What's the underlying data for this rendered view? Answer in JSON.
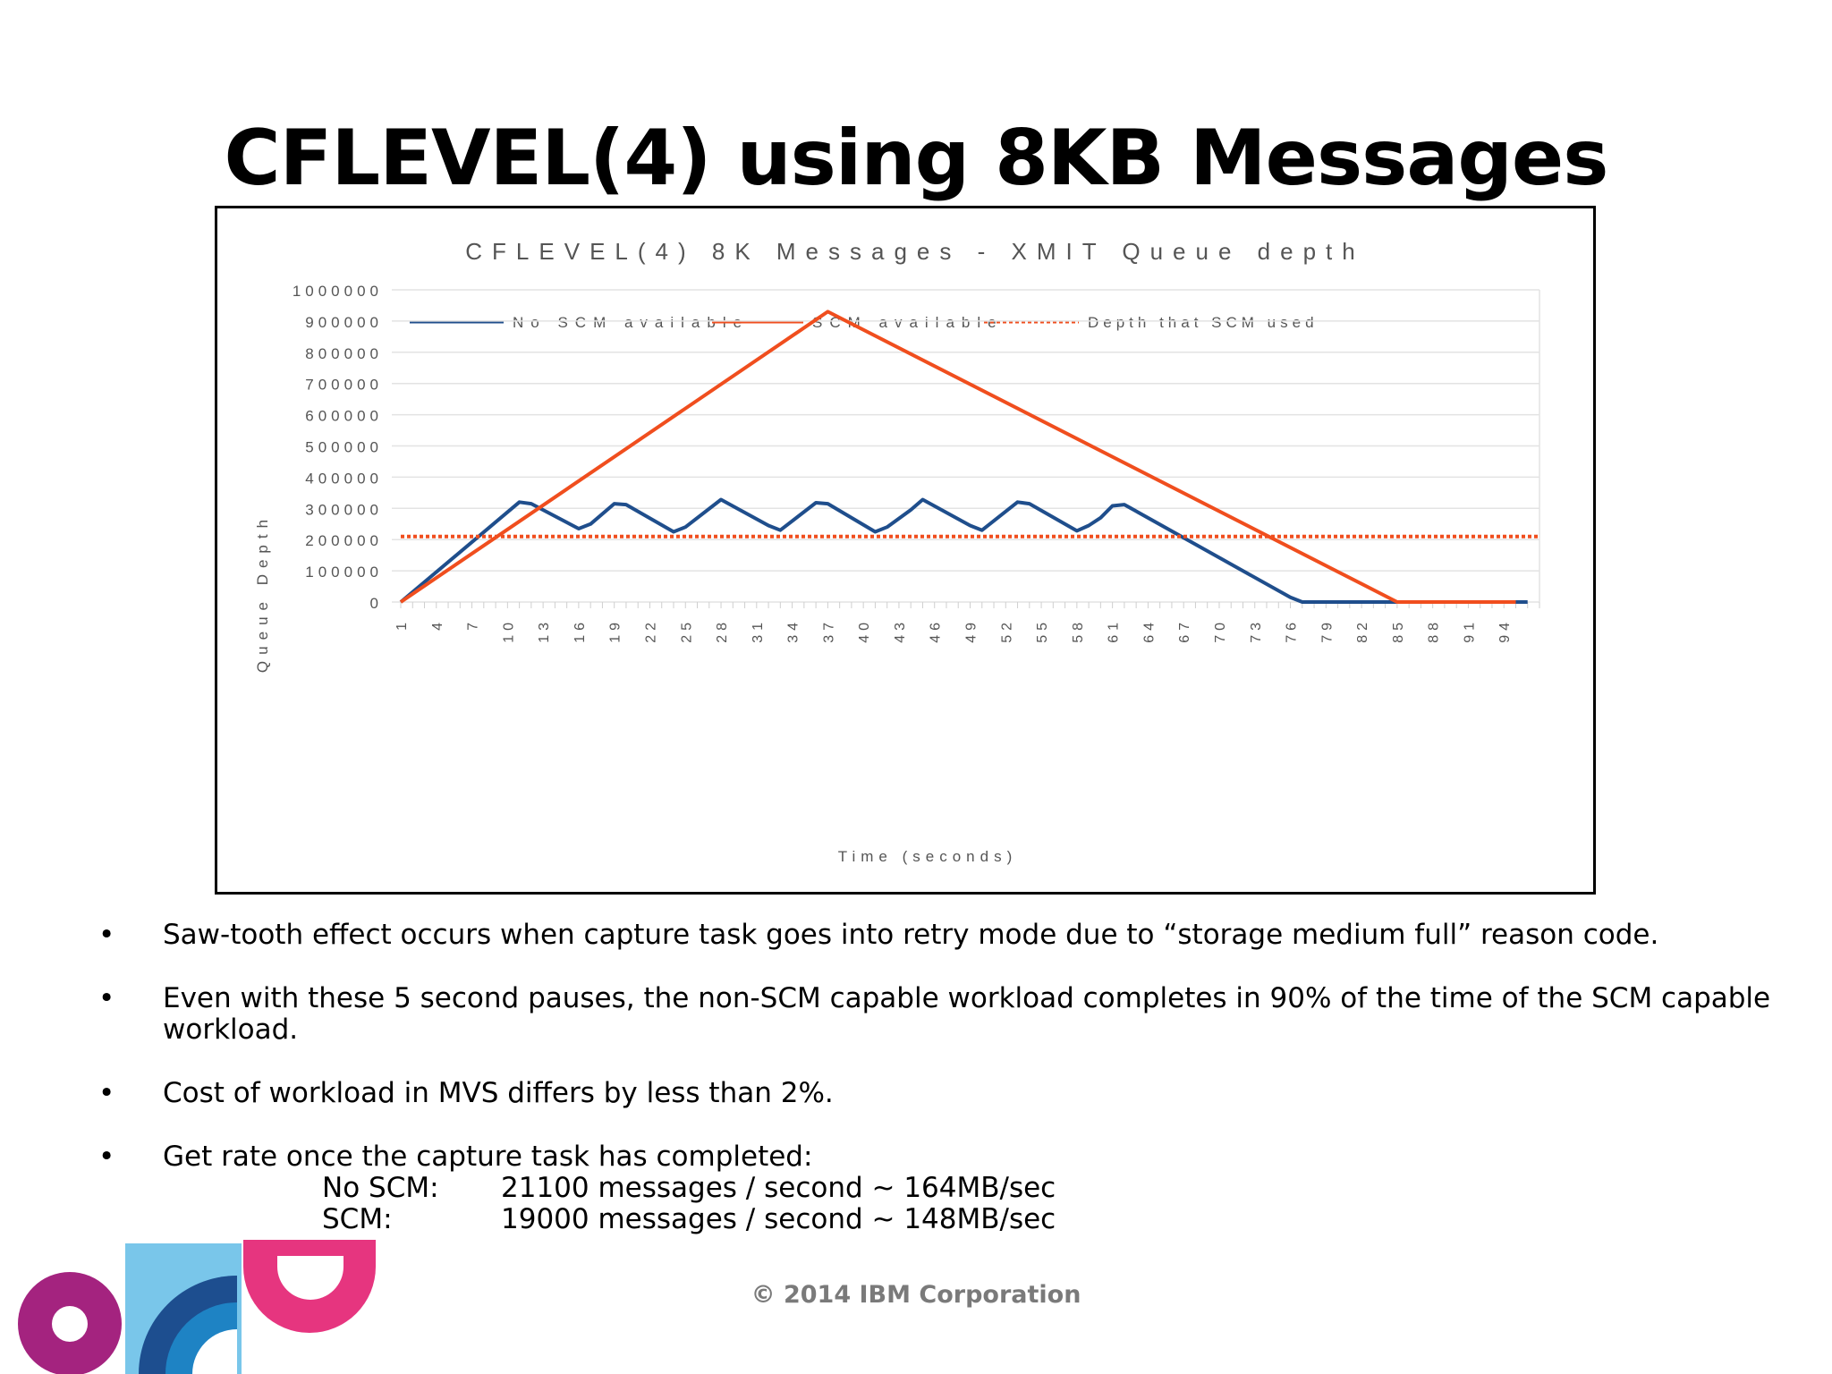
{
  "slide": {
    "title": "CFLEVEL(4) using 8KB Messages",
    "copyright": "© 2014 IBM Corporation"
  },
  "bullets": [
    {
      "text": "Saw-tooth effect occurs when capture task goes into retry mode due to “storage medium full” reason code."
    },
    {
      "text": "Even with these 5 second pauses, the non-SCM capable workload completes in 90% of the time of the SCM capable workload."
    },
    {
      "text": "Cost of workload in MVS differs by less than 2%."
    },
    {
      "text": "Get rate once the capture task has completed:",
      "rates": [
        {
          "label": "No SCM:",
          "value": "21100 messages / second ~ 164MB/sec"
        },
        {
          "label": "SCM:",
          "value": "19000 messages / second ~ 148MB/sec"
        }
      ]
    }
  ],
  "colors": {
    "no_scm": "#1f4e8c",
    "scm": "#f04e1e",
    "depth_line": "#f04e1e",
    "grid": "#e3e3e3"
  },
  "chart_data": {
    "type": "line",
    "title": "CFLEVEL(4) 8K Messages - XMIT Queue depth",
    "xlabel": "Time (seconds)",
    "ylabel": "Queue Depth",
    "ylim": [
      0,
      1000000
    ],
    "yticks": [
      "0",
      "100000",
      "200000",
      "300000",
      "400000",
      "500000",
      "600000",
      "700000",
      "800000",
      "900000",
      "1000000"
    ],
    "xticks": [
      "1",
      "4",
      "7",
      "10",
      "13",
      "16",
      "19",
      "22",
      "25",
      "28",
      "31",
      "34",
      "37",
      "40",
      "43",
      "46",
      "49",
      "52",
      "55",
      "58",
      "61",
      "64",
      "67",
      "70",
      "73",
      "76",
      "79",
      "82",
      "85",
      "88",
      "91",
      "94"
    ],
    "x_count": 97,
    "legend_position": "top",
    "grid": true,
    "series": [
      {
        "name": "No SCM available",
        "style": "solid",
        "points": [
          [
            1,
            0
          ],
          [
            11,
            320000
          ],
          [
            12,
            315000
          ],
          [
            16,
            235000
          ],
          [
            17,
            250000
          ],
          [
            19,
            315000
          ],
          [
            20,
            312000
          ],
          [
            24,
            225000
          ],
          [
            25,
            240000
          ],
          [
            28,
            328000
          ],
          [
            32,
            245000
          ],
          [
            33,
            230000
          ],
          [
            36,
            318000
          ],
          [
            37,
            315000
          ],
          [
            41,
            225000
          ],
          [
            42,
            240000
          ],
          [
            44,
            295000
          ],
          [
            45,
            328000
          ],
          [
            49,
            245000
          ],
          [
            50,
            230000
          ],
          [
            53,
            320000
          ],
          [
            54,
            315000
          ],
          [
            58,
            228000
          ],
          [
            59,
            245000
          ],
          [
            60,
            270000
          ],
          [
            61,
            308000
          ],
          [
            62,
            312000
          ],
          [
            76,
            15000
          ],
          [
            77,
            0
          ],
          [
            96,
            0
          ]
        ]
      },
      {
        "name": "SCM available",
        "style": "solid",
        "points": [
          [
            1,
            0
          ],
          [
            37,
            930000
          ],
          [
            85,
            0
          ],
          [
            95,
            0
          ]
        ]
      },
      {
        "name": "Depth that SCM used",
        "style": "dotted",
        "points": [
          [
            1,
            210000
          ],
          [
            97,
            210000
          ]
        ]
      }
    ]
  }
}
